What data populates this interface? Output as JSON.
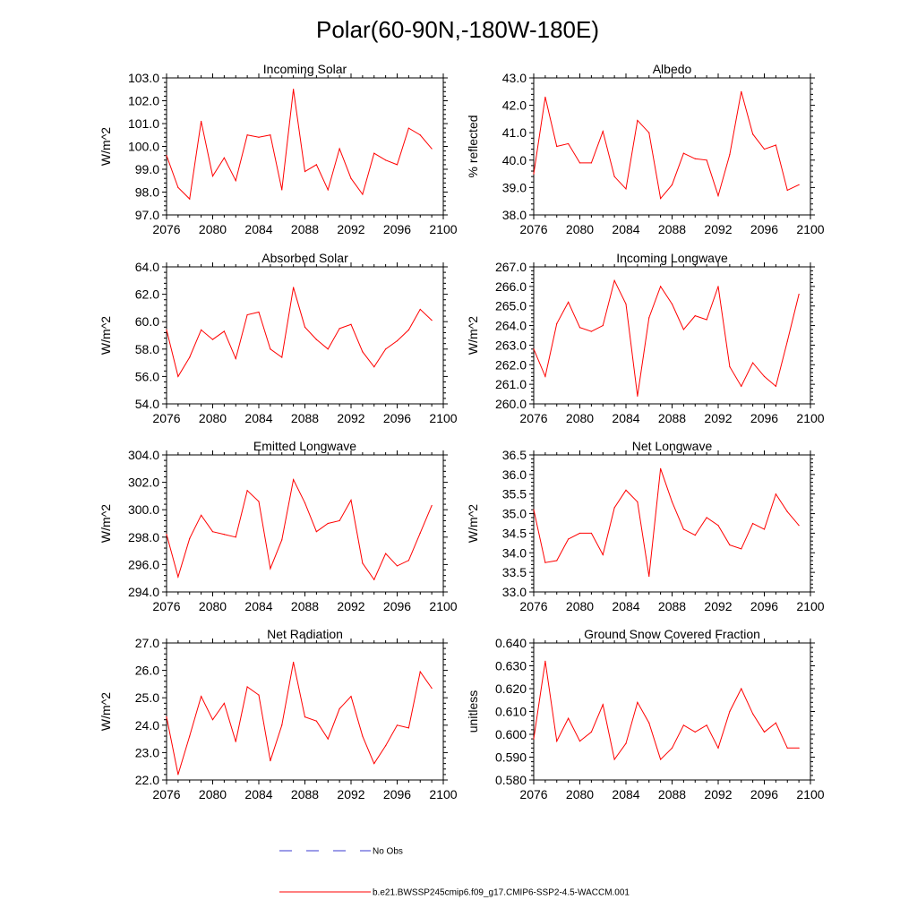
{
  "figure_title": "Polar(60-90N,-180W-180E)",
  "legend": {
    "obs_label": "No Obs",
    "model_label": "b.e21.BWSSP245cmip6.f09_g17.CMIP6-SSP2-4.5-WACCM.001",
    "obs_color": "#3a3ad0",
    "model_color": "#ff0000"
  },
  "chart_data": [
    {
      "type": "line",
      "title": "Incoming Solar",
      "xlabel": "",
      "ylabel": "W/m^2",
      "xlim": [
        2076,
        2100
      ],
      "ylim": [
        97.0,
        103.0
      ],
      "xticks": [
        "2076",
        "2080",
        "2084",
        "2088",
        "2092",
        "2096",
        "2100"
      ],
      "yticks": [
        "97.0",
        "98.0",
        "99.0",
        "100.0",
        "101.0",
        "102.0",
        "103.0"
      ],
      "x": [
        2076,
        2077,
        2078,
        2079,
        2080,
        2081,
        2082,
        2083,
        2084,
        2085,
        2086,
        2087,
        2088,
        2089,
        2090,
        2091,
        2092,
        2093,
        2094,
        2095,
        2096,
        2097,
        2098,
        2099
      ],
      "values": [
        99.6,
        98.2,
        97.7,
        101.1,
        98.7,
        99.5,
        98.5,
        100.5,
        100.4,
        100.5,
        98.1,
        102.5,
        98.9,
        99.2,
        98.1,
        99.9,
        98.6,
        97.9,
        99.7,
        99.4,
        99.2,
        100.8,
        100.5,
        99.9
      ]
    },
    {
      "type": "line",
      "title": "Albedo",
      "xlabel": "",
      "ylabel": "% reflected",
      "xlim": [
        2076,
        2100
      ],
      "ylim": [
        38.0,
        43.0
      ],
      "xticks": [
        "2076",
        "2080",
        "2084",
        "2088",
        "2092",
        "2096",
        "2100"
      ],
      "yticks": [
        "38.0",
        "39.0",
        "40.0",
        "41.0",
        "42.0",
        "43.0"
      ],
      "x": [
        2076,
        2077,
        2078,
        2079,
        2080,
        2081,
        2082,
        2083,
        2084,
        2085,
        2086,
        2087,
        2088,
        2089,
        2090,
        2091,
        2092,
        2093,
        2094,
        2095,
        2096,
        2097,
        2098,
        2099
      ],
      "values": [
        39.5,
        42.3,
        40.5,
        40.6,
        39.9,
        39.9,
        41.05,
        39.4,
        38.95,
        41.45,
        41.0,
        38.6,
        39.1,
        40.25,
        40.05,
        40.0,
        38.7,
        40.2,
        42.5,
        40.95,
        40.4,
        40.55,
        38.9,
        39.1
      ]
    },
    {
      "type": "line",
      "title": "Absorbed Solar",
      "xlabel": "",
      "ylabel": "W/m^2",
      "xlim": [
        2076,
        2100
      ],
      "ylim": [
        54.0,
        64.0
      ],
      "xticks": [
        "2076",
        "2080",
        "2084",
        "2088",
        "2092",
        "2096",
        "2100"
      ],
      "yticks": [
        "54.0",
        "56.0",
        "58.0",
        "60.0",
        "62.0",
        "64.0"
      ],
      "x": [
        2076,
        2077,
        2078,
        2079,
        2080,
        2081,
        2082,
        2083,
        2084,
        2085,
        2086,
        2087,
        2088,
        2089,
        2090,
        2091,
        2092,
        2093,
        2094,
        2095,
        2096,
        2097,
        2098,
        2099
      ],
      "values": [
        59.4,
        56.0,
        57.4,
        59.4,
        58.7,
        59.3,
        57.3,
        60.5,
        60.7,
        58.0,
        57.4,
        62.5,
        59.6,
        58.7,
        58.0,
        59.5,
        59.8,
        57.8,
        56.7,
        58.0,
        58.6,
        59.4,
        60.9,
        60.1
      ]
    },
    {
      "type": "line",
      "title": "Incoming Longwave",
      "xlabel": "",
      "ylabel": "W/m^2",
      "xlim": [
        2076,
        2100
      ],
      "ylim": [
        260.0,
        267.0
      ],
      "xticks": [
        "2076",
        "2080",
        "2084",
        "2088",
        "2092",
        "2096",
        "2100"
      ],
      "yticks": [
        "260.0",
        "261.0",
        "262.0",
        "263.0",
        "264.0",
        "265.0",
        "266.0",
        "267.0"
      ],
      "x": [
        2076,
        2077,
        2078,
        2079,
        2080,
        2081,
        2082,
        2083,
        2084,
        2085,
        2086,
        2087,
        2088,
        2089,
        2090,
        2091,
        2092,
        2093,
        2094,
        2095,
        2096,
        2097,
        2098,
        2099
      ],
      "values": [
        262.8,
        261.4,
        264.1,
        265.2,
        263.9,
        263.7,
        264.0,
        266.3,
        265.1,
        260.4,
        264.4,
        266.0,
        265.1,
        263.8,
        264.5,
        264.3,
        266.0,
        261.9,
        260.9,
        262.1,
        261.4,
        260.9,
        263.2,
        265.6
      ]
    },
    {
      "type": "line",
      "title": "Emitted Longwave",
      "xlabel": "",
      "ylabel": "W/m^2",
      "xlim": [
        2076,
        2100
      ],
      "ylim": [
        294.0,
        304.0
      ],
      "xticks": [
        "2076",
        "2080",
        "2084",
        "2088",
        "2092",
        "2096",
        "2100"
      ],
      "yticks": [
        "294.0",
        "296.0",
        "298.0",
        "300.0",
        "302.0",
        "304.0"
      ],
      "x": [
        2076,
        2077,
        2078,
        2079,
        2080,
        2081,
        2082,
        2083,
        2084,
        2085,
        2086,
        2087,
        2088,
        2089,
        2090,
        2091,
        2092,
        2093,
        2094,
        2095,
        2096,
        2097,
        2098,
        2099
      ],
      "values": [
        298.2,
        295.1,
        297.9,
        299.6,
        298.4,
        298.2,
        298.0,
        301.4,
        300.6,
        295.7,
        297.8,
        302.2,
        300.5,
        298.4,
        299.0,
        299.2,
        300.7,
        296.1,
        294.9,
        296.8,
        295.9,
        296.3,
        298.3,
        300.3
      ]
    },
    {
      "type": "line",
      "title": "Net Longwave",
      "xlabel": "",
      "ylabel": "W/m^2",
      "xlim": [
        2076,
        2100
      ],
      "ylim": [
        33.0,
        36.5
      ],
      "xticks": [
        "2076",
        "2080",
        "2084",
        "2088",
        "2092",
        "2096",
        "2100"
      ],
      "yticks": [
        "33.0",
        "33.5",
        "34.0",
        "34.5",
        "35.0",
        "35.5",
        "36.0",
        "36.5"
      ],
      "x": [
        2076,
        2077,
        2078,
        2079,
        2080,
        2081,
        2082,
        2083,
        2084,
        2085,
        2086,
        2087,
        2088,
        2089,
        2090,
        2091,
        2092,
        2093,
        2094,
        2095,
        2096,
        2097,
        2098,
        2099
      ],
      "values": [
        35.1,
        33.75,
        33.8,
        34.35,
        34.5,
        34.5,
        33.95,
        35.15,
        35.6,
        35.3,
        33.4,
        36.15,
        35.3,
        34.6,
        34.45,
        34.9,
        34.7,
        34.2,
        34.1,
        34.75,
        34.6,
        35.5,
        35.05,
        34.7
      ]
    },
    {
      "type": "line",
      "title": "Net Radiation",
      "xlabel": "",
      "ylabel": "W/m^2",
      "xlim": [
        2076,
        2100
      ],
      "ylim": [
        22.0,
        27.0
      ],
      "xticks": [
        "2076",
        "2080",
        "2084",
        "2088",
        "2092",
        "2096",
        "2100"
      ],
      "yticks": [
        "22.0",
        "23.0",
        "24.0",
        "25.0",
        "26.0",
        "27.0"
      ],
      "x": [
        2076,
        2077,
        2078,
        2079,
        2080,
        2081,
        2082,
        2083,
        2084,
        2085,
        2086,
        2087,
        2088,
        2089,
        2090,
        2091,
        2092,
        2093,
        2094,
        2095,
        2096,
        2097,
        2098,
        2099
      ],
      "values": [
        24.3,
        22.2,
        23.6,
        25.05,
        24.2,
        24.8,
        23.4,
        25.4,
        25.1,
        22.7,
        24.0,
        26.3,
        24.3,
        24.15,
        23.5,
        24.6,
        25.05,
        23.6,
        22.6,
        23.25,
        24.0,
        23.9,
        25.95,
        25.35
      ]
    },
    {
      "type": "line",
      "title": "Ground Snow Covered Fraction",
      "xlabel": "",
      "ylabel": "unitless",
      "xlim": [
        2076,
        2100
      ],
      "ylim": [
        0.58,
        0.64
      ],
      "xticks": [
        "2076",
        "2080",
        "2084",
        "2088",
        "2092",
        "2096",
        "2100"
      ],
      "yticks": [
        "0.580",
        "0.590",
        "0.600",
        "0.610",
        "0.620",
        "0.630",
        "0.640"
      ],
      "x": [
        2076,
        2077,
        2078,
        2079,
        2080,
        2081,
        2082,
        2083,
        2084,
        2085,
        2086,
        2087,
        2088,
        2089,
        2090,
        2091,
        2092,
        2093,
        2094,
        2095,
        2096,
        2097,
        2098,
        2099
      ],
      "values": [
        0.598,
        0.632,
        0.597,
        0.607,
        0.597,
        0.601,
        0.613,
        0.589,
        0.596,
        0.614,
        0.605,
        0.589,
        0.594,
        0.604,
        0.601,
        0.604,
        0.594,
        0.61,
        0.62,
        0.609,
        0.601,
        0.605,
        0.594,
        0.594
      ]
    }
  ]
}
